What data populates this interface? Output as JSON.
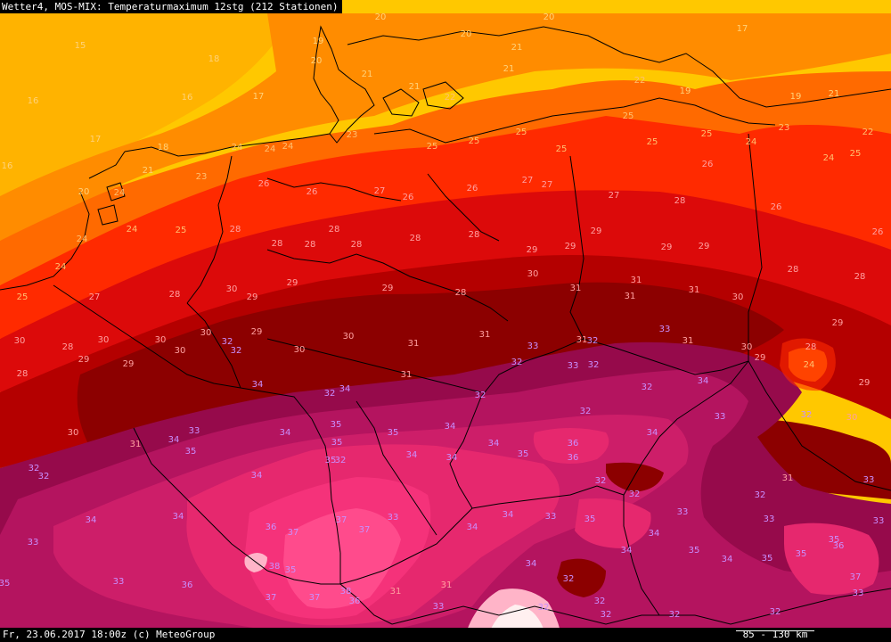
{
  "title": "Wetter4, MOS-MIX: Temperaturmaximum 12stg (212 Stationen)",
  "footer": "Fr, 23.06.2017 18:00z (c) MeteoGroup",
  "scale": "85 - 130 km",
  "colors": {
    "t15": "#ffb300",
    "t17": "#ffc800",
    "t20": "#ff8c00",
    "t22": "#ff6a00",
    "t24": "#ff2a00",
    "t26": "#dc0a0a",
    "t28": "#b40000",
    "t30": "#8c0000",
    "t32": "#960a4b",
    "t33": "#b4145f",
    "t34": "#cd1e69",
    "t35": "#e6286e",
    "t36": "#f5327a",
    "t37": "#ff4b8c",
    "t38": "#ffb4c8",
    "t39": "#fff0f0",
    "border": "#000000",
    "label_warm": "#ffa0a0",
    "label_hot": "#c890ff"
  },
  "stations": [
    [
      90,
      50,
      "15"
    ],
    [
      240,
      65,
      "18"
    ],
    [
      37,
      112,
      "16"
    ],
    [
      210,
      108,
      "16"
    ],
    [
      290,
      107,
      "17"
    ],
    [
      107,
      155,
      "17"
    ],
    [
      8,
      185,
      "16"
    ],
    [
      183,
      164,
      "18"
    ],
    [
      357,
      45,
      "19"
    ],
    [
      355,
      67,
      "20"
    ],
    [
      412,
      82,
      "21"
    ],
    [
      465,
      96,
      "21"
    ],
    [
      505,
      108,
      "22"
    ],
    [
      523,
      37,
      "20"
    ],
    [
      580,
      52,
      "21"
    ],
    [
      571,
      76,
      "21"
    ],
    [
      616,
      18,
      "20"
    ],
    [
      427,
      18,
      "20"
    ],
    [
      718,
      89,
      "22"
    ],
    [
      769,
      101,
      "19"
    ],
    [
      893,
      107,
      "19"
    ],
    [
      936,
      104,
      "21"
    ],
    [
      833,
      31,
      "17"
    ],
    [
      166,
      190,
      "21"
    ],
    [
      94,
      214,
      "20"
    ],
    [
      134,
      215,
      "24"
    ],
    [
      226,
      197,
      "23"
    ],
    [
      266,
      164,
      "24"
    ],
    [
      303,
      166,
      "24"
    ],
    [
      323,
      163,
      "24"
    ],
    [
      395,
      150,
      "23"
    ],
    [
      485,
      163,
      "25"
    ],
    [
      532,
      157,
      "25"
    ],
    [
      585,
      147,
      "25"
    ],
    [
      630,
      166,
      "25"
    ],
    [
      705,
      129,
      "25"
    ],
    [
      732,
      158,
      "25"
    ],
    [
      793,
      149,
      "25"
    ],
    [
      843,
      158,
      "24"
    ],
    [
      880,
      142,
      "23"
    ],
    [
      974,
      147,
      "22"
    ],
    [
      930,
      176,
      "24"
    ],
    [
      960,
      171,
      "25"
    ],
    [
      794,
      183,
      "26"
    ],
    [
      148,
      256,
      "24"
    ],
    [
      92,
      267,
      "24"
    ],
    [
      203,
      257,
      "25"
    ],
    [
      68,
      298,
      "24"
    ],
    [
      25,
      332,
      "25"
    ],
    [
      296,
      205,
      "26"
    ],
    [
      350,
      214,
      "26"
    ],
    [
      426,
      213,
      "27"
    ],
    [
      458,
      220,
      "26"
    ],
    [
      530,
      210,
      "26"
    ],
    [
      592,
      201,
      "27"
    ],
    [
      614,
      206,
      "27"
    ],
    [
      689,
      218,
      "27"
    ],
    [
      763,
      224,
      "28"
    ],
    [
      871,
      231,
      "26"
    ],
    [
      985,
      259,
      "26"
    ],
    [
      264,
      256,
      "28"
    ],
    [
      311,
      272,
      "28"
    ],
    [
      348,
      273,
      "28"
    ],
    [
      375,
      256,
      "28"
    ],
    [
      400,
      273,
      "28"
    ],
    [
      466,
      266,
      "28"
    ],
    [
      532,
      262,
      "28"
    ],
    [
      597,
      279,
      "29"
    ],
    [
      640,
      275,
      "29"
    ],
    [
      669,
      258,
      "29"
    ],
    [
      748,
      276,
      "29"
    ],
    [
      790,
      275,
      "29"
    ],
    [
      890,
      301,
      "28"
    ],
    [
      965,
      309,
      "28"
    ],
    [
      940,
      361,
      "29"
    ],
    [
      910,
      388,
      "28"
    ],
    [
      106,
      332,
      "27"
    ],
    [
      196,
      329,
      "28"
    ],
    [
      231,
      372,
      "30"
    ],
    [
      260,
      323,
      "30"
    ],
    [
      283,
      332,
      "29"
    ],
    [
      328,
      316,
      "29"
    ],
    [
      435,
      322,
      "29"
    ],
    [
      517,
      327,
      "28"
    ],
    [
      598,
      306,
      "30"
    ],
    [
      646,
      322,
      "31"
    ],
    [
      707,
      331,
      "31"
    ],
    [
      714,
      313,
      "31"
    ],
    [
      779,
      324,
      "31"
    ],
    [
      828,
      332,
      "30"
    ],
    [
      22,
      381,
      "30"
    ],
    [
      76,
      388,
      "28"
    ],
    [
      116,
      380,
      "30"
    ],
    [
      94,
      402,
      "29"
    ],
    [
      144,
      407,
      "29"
    ],
    [
      180,
      380,
      "30"
    ],
    [
      202,
      392,
      "30"
    ],
    [
      25,
      418,
      "28"
    ],
    [
      288,
      371,
      "29"
    ],
    [
      336,
      391,
      "30"
    ],
    [
      391,
      376,
      "30"
    ],
    [
      464,
      384,
      "31"
    ],
    [
      544,
      374,
      "31"
    ],
    [
      598,
      387,
      "33"
    ],
    [
      653,
      380,
      "31"
    ],
    [
      665,
      381,
      "32"
    ],
    [
      746,
      368,
      "33"
    ],
    [
      772,
      381,
      "31"
    ],
    [
      838,
      388,
      "30"
    ],
    [
      853,
      400,
      "29"
    ],
    [
      908,
      408,
      "24"
    ],
    [
      970,
      428,
      "29"
    ],
    [
      255,
      382,
      "32"
    ],
    [
      265,
      392,
      "32"
    ],
    [
      456,
      419,
      "31"
    ],
    [
      580,
      405,
      "32"
    ],
    [
      643,
      409,
      "33"
    ],
    [
      666,
      408,
      "32"
    ],
    [
      726,
      433,
      "32"
    ],
    [
      789,
      426,
      "34"
    ],
    [
      289,
      430,
      "34"
    ],
    [
      370,
      440,
      "32"
    ],
    [
      387,
      435,
      "34"
    ],
    [
      539,
      442,
      "32"
    ],
    [
      657,
      460,
      "32"
    ],
    [
      808,
      466,
      "33"
    ],
    [
      905,
      464,
      "32"
    ],
    [
      956,
      467,
      "30"
    ],
    [
      82,
      484,
      "30"
    ],
    [
      152,
      497,
      "31"
    ],
    [
      38,
      524,
      "32"
    ],
    [
      49,
      533,
      "32"
    ],
    [
      218,
      482,
      "33"
    ],
    [
      320,
      484,
      "34"
    ],
    [
      377,
      475,
      "35"
    ],
    [
      441,
      484,
      "35"
    ],
    [
      505,
      477,
      "34"
    ],
    [
      195,
      492,
      "34"
    ],
    [
      214,
      505,
      "35"
    ],
    [
      378,
      495,
      "35"
    ],
    [
      371,
      515,
      "35"
    ],
    [
      462,
      509,
      "34"
    ],
    [
      507,
      512,
      "34"
    ],
    [
      554,
      496,
      "34"
    ],
    [
      587,
      508,
      "35"
    ],
    [
      643,
      496,
      "36"
    ],
    [
      643,
      512,
      "36"
    ],
    [
      732,
      484,
      "34"
    ],
    [
      288,
      532,
      "34"
    ],
    [
      382,
      515,
      "32"
    ],
    [
      674,
      538,
      "32"
    ],
    [
      712,
      553,
      "32"
    ],
    [
      884,
      535,
      "31"
    ],
    [
      975,
      537,
      "33"
    ],
    [
      853,
      554,
      "32"
    ],
    [
      102,
      582,
      "34"
    ],
    [
      200,
      578,
      "34"
    ],
    [
      304,
      590,
      "36"
    ],
    [
      329,
      596,
      "37"
    ],
    [
      383,
      582,
      "37"
    ],
    [
      409,
      593,
      "37"
    ],
    [
      441,
      579,
      "33"
    ],
    [
      530,
      590,
      "34"
    ],
    [
      570,
      576,
      "34"
    ],
    [
      618,
      578,
      "33"
    ],
    [
      662,
      581,
      "35"
    ],
    [
      734,
      597,
      "34"
    ],
    [
      766,
      573,
      "33"
    ],
    [
      863,
      581,
      "33"
    ],
    [
      986,
      583,
      "33"
    ],
    [
      37,
      607,
      "33"
    ],
    [
      703,
      616,
      "34"
    ],
    [
      779,
      616,
      "35"
    ],
    [
      816,
      626,
      "34"
    ],
    [
      861,
      625,
      "35"
    ],
    [
      899,
      620,
      "35"
    ],
    [
      936,
      604,
      "35"
    ],
    [
      941,
      611,
      "36"
    ],
    [
      960,
      646,
      "37"
    ],
    [
      133,
      651,
      "33"
    ],
    [
      210,
      655,
      "36"
    ],
    [
      308,
      634,
      "38"
    ],
    [
      326,
      638,
      "35"
    ],
    [
      596,
      631,
      "34"
    ],
    [
      638,
      648,
      "32"
    ],
    [
      501,
      655,
      "31"
    ],
    [
      492,
      679,
      "33"
    ],
    [
      304,
      669,
      "37"
    ],
    [
      353,
      669,
      "37"
    ],
    [
      388,
      662,
      "38"
    ],
    [
      398,
      673,
      "36"
    ],
    [
      444,
      662,
      "31"
    ],
    [
      610,
      680,
      "32"
    ],
    [
      673,
      673,
      "32"
    ],
    [
      680,
      688,
      "32"
    ],
    [
      757,
      688,
      "32"
    ],
    [
      870,
      685,
      "32"
    ],
    [
      963,
      664,
      "33"
    ],
    [
      5,
      653,
      "35"
    ]
  ]
}
